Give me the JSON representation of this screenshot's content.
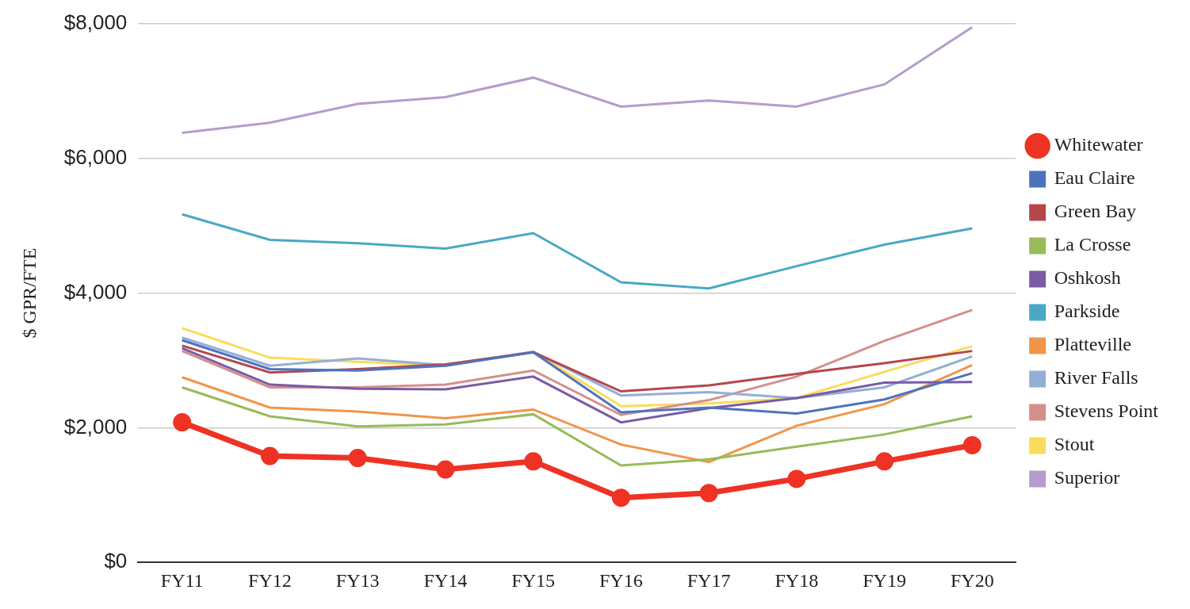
{
  "chart_data": {
    "type": "line",
    "y_label": "$ GPR/FTE",
    "categories": [
      "FY11",
      "FY12",
      "FY13",
      "FY14",
      "FY15",
      "FY16",
      "FY17",
      "FY18",
      "FY19",
      "FY20"
    ],
    "series": [
      {
        "name": "Eau Claire",
        "color": "#4e73be",
        "marker": "none",
        "values": [
          3300,
          2870,
          2850,
          2920,
          3120,
          2230,
          2300,
          2210,
          2420,
          2810
        ]
      },
      {
        "name": "Green Bay",
        "color": "#b5474b",
        "marker": "none",
        "values": [
          3220,
          2820,
          2870,
          2940,
          3120,
          2540,
          2630,
          2800,
          2960,
          3140
        ]
      },
      {
        "name": "La Crosse",
        "color": "#98bb59",
        "marker": "none",
        "values": [
          2600,
          2170,
          2020,
          2050,
          2200,
          1440,
          1530,
          1720,
          1900,
          2170
        ]
      },
      {
        "name": "Oshkosh",
        "color": "#7a5ba6",
        "marker": "none",
        "values": [
          3180,
          2640,
          2580,
          2570,
          2760,
          2080,
          2290,
          2440,
          2670,
          2680
        ]
      },
      {
        "name": "Parkside",
        "color": "#4aa8c4",
        "marker": "none",
        "values": [
          5170,
          4790,
          4740,
          4660,
          4890,
          4160,
          4070,
          4400,
          4720,
          4960
        ]
      },
      {
        "name": "Platteville",
        "color": "#f0954a",
        "marker": "none",
        "values": [
          2750,
          2300,
          2240,
          2140,
          2270,
          1750,
          1490,
          2030,
          2350,
          2930
        ]
      },
      {
        "name": "River Falls",
        "color": "#94aed7",
        "marker": "none",
        "values": [
          3340,
          2920,
          3030,
          2930,
          3130,
          2480,
          2530,
          2440,
          2600,
          3060
        ]
      },
      {
        "name": "Stevens Point",
        "color": "#d48f8b",
        "marker": "none",
        "values": [
          3140,
          2600,
          2600,
          2640,
          2850,
          2190,
          2410,
          2760,
          3290,
          3750
        ]
      },
      {
        "name": "Stout",
        "color": "#f9dc5c",
        "marker": "none",
        "values": [
          3480,
          3040,
          2980,
          2920,
          3130,
          2320,
          2360,
          2440,
          2830,
          3210
        ]
      },
      {
        "name": "Superior",
        "color": "#b39dcc",
        "marker": "none",
        "values": [
          6380,
          6530,
          6810,
          6910,
          7200,
          6770,
          6860,
          6770,
          7100,
          7950
        ]
      },
      {
        "name": "Whitewater",
        "color": "#ee3224",
        "marker": "circle",
        "values": [
          2080,
          1580,
          1550,
          1380,
          1500,
          960,
          1030,
          1240,
          1500,
          1740
        ]
      }
    ],
    "ylim": [
      0,
      8000
    ],
    "yticks": [
      {
        "value": 0,
        "label": "$0"
      },
      {
        "value": 2000,
        "label": "$2,000"
      },
      {
        "value": 4000,
        "label": "$4,000"
      },
      {
        "value": 6000,
        "label": "$6,000"
      },
      {
        "value": 8000,
        "label": "$8,000"
      }
    ],
    "grid": true,
    "legend": "right"
  }
}
